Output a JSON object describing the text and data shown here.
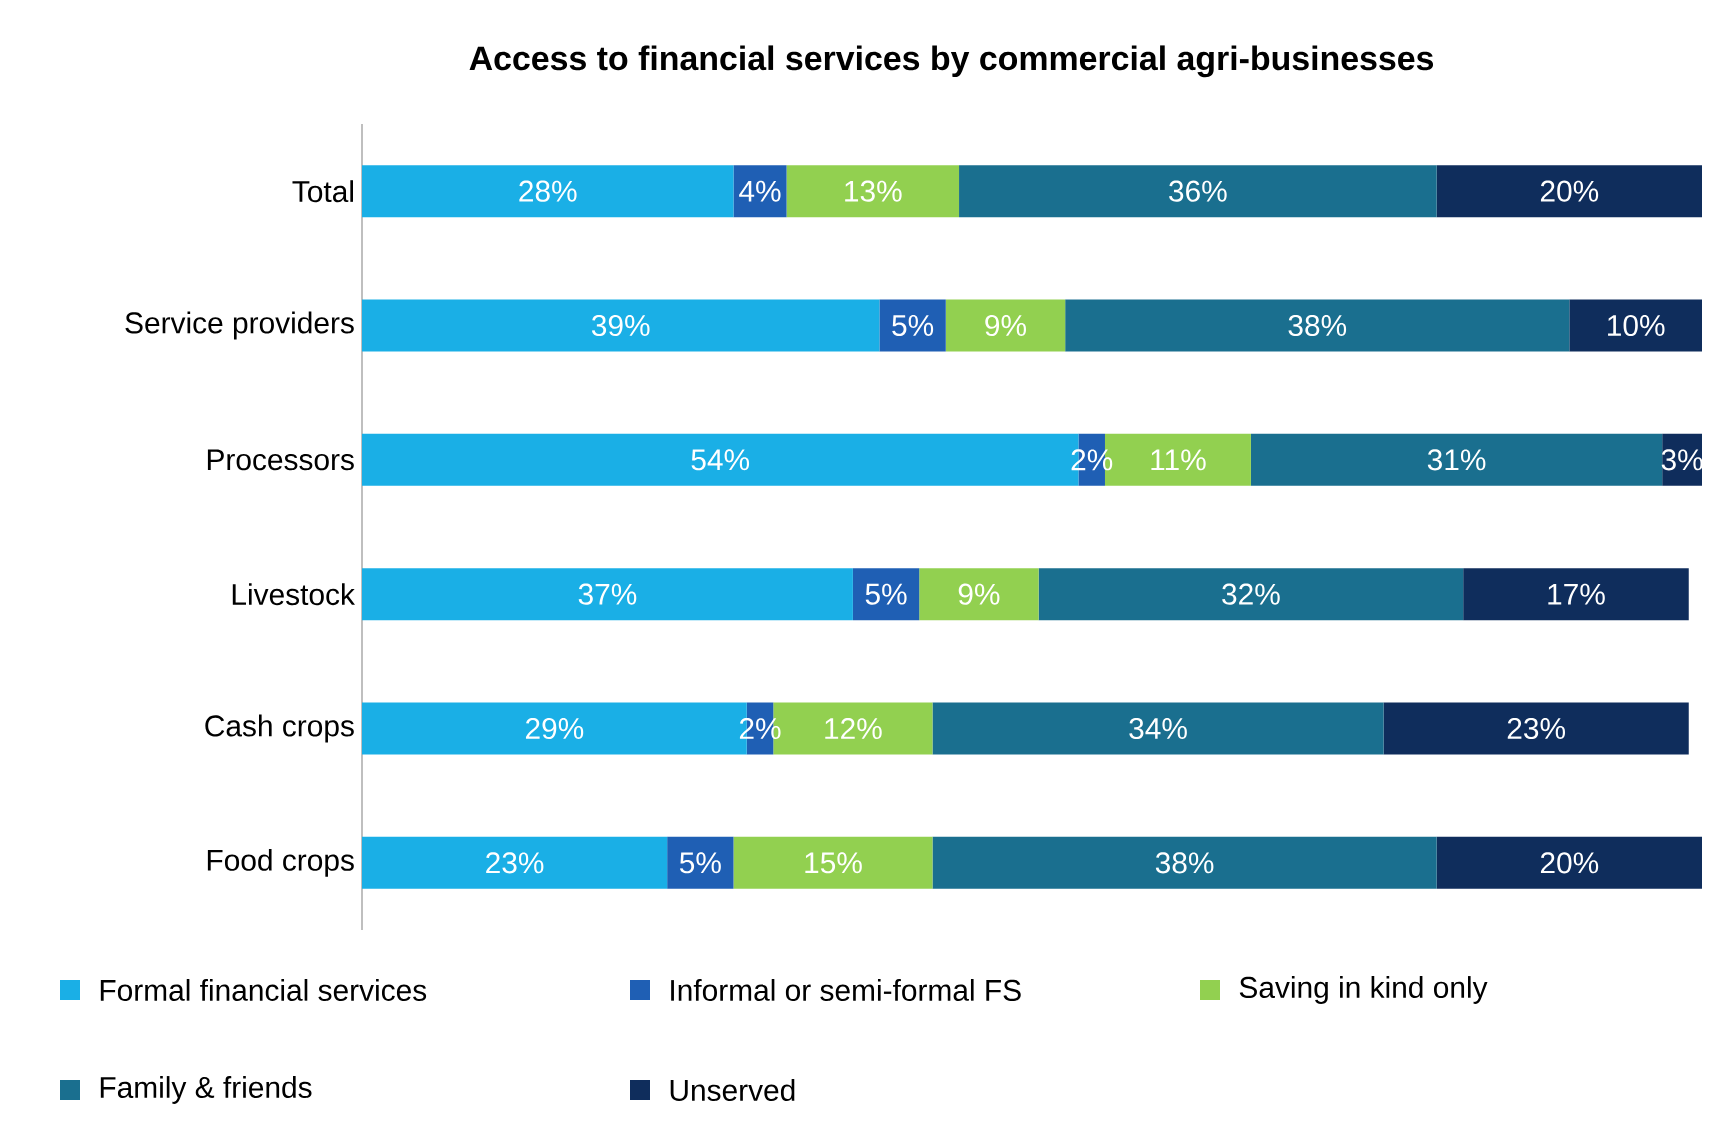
{
  "chart_data": {
    "type": "bar",
    "orientation": "horizontal",
    "stacked": true,
    "title": "Access to financial services by commercial agri-businesses",
    "categories": [
      "Total",
      "Service providers",
      "Processors",
      "Livestock",
      "Cash crops",
      "Food crops"
    ],
    "series": [
      {
        "name": "Formal financial services",
        "color": "#1aafe6",
        "values": [
          28,
          39,
          54,
          37,
          29,
          23
        ],
        "value_labels": [
          "28%",
          "39%",
          "54%",
          "37%",
          "29%",
          "23%"
        ]
      },
      {
        "name": "Informal or semi-formal FS",
        "color": "#1f5fb4",
        "values": [
          4,
          5,
          2,
          5,
          2,
          5
        ],
        "value_labels": [
          "4%",
          "5%",
          "2%",
          "5%",
          "2%",
          "5%"
        ]
      },
      {
        "name": "Saving in kind only",
        "color": "#92d050",
        "values": [
          13,
          9,
          11,
          9,
          12,
          15
        ],
        "value_labels": [
          "13%",
          "9%",
          "11%",
          "9%",
          "12%",
          "15%"
        ]
      },
      {
        "name": "Family & friends",
        "color": "#1a6f8f",
        "values": [
          36,
          38,
          31,
          32,
          34,
          38
        ],
        "value_labels": [
          "36%",
          "38%",
          "31%",
          "32%",
          "34%",
          "38%"
        ]
      },
      {
        "name": "Unserved",
        "color": "#0f2d5c",
        "values": [
          20,
          10,
          3,
          17,
          23,
          20
        ],
        "value_labels": [
          "20%",
          "10%",
          "3%",
          "17%",
          "23%",
          "20%"
        ]
      }
    ],
    "legend": "bottom",
    "grid": false
  }
}
